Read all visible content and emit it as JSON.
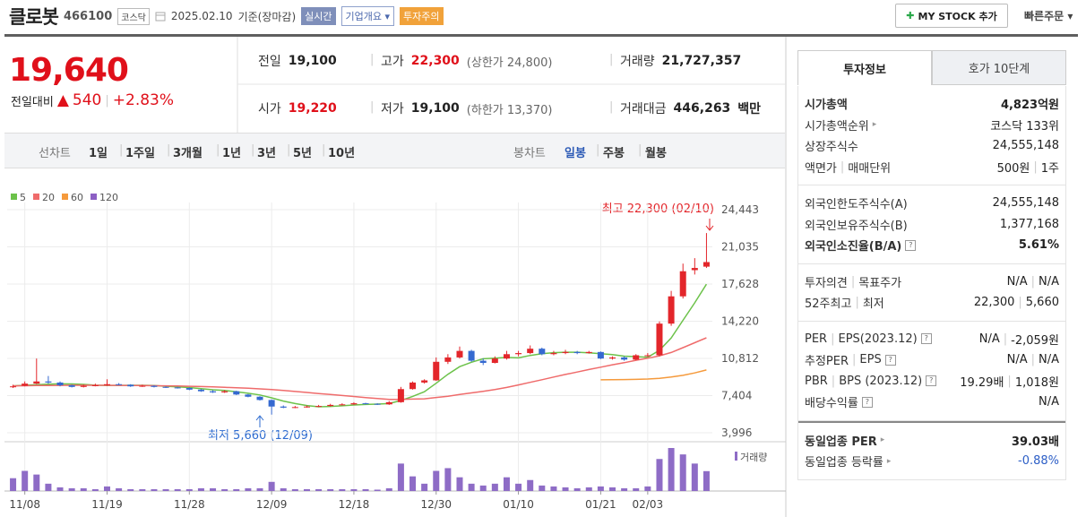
{
  "header": {
    "name": "클로봇",
    "code": "466100",
    "market": "코스닥",
    "date": "2025.02.10",
    "basis": "기준(장마감)",
    "badges": [
      "실시간",
      "기업개요",
      "투자주의"
    ],
    "my_stock": "MY STOCK 추가",
    "quick_order": "빠른주문"
  },
  "quote": {
    "price": "19,640",
    "change_label": "전일대비",
    "change": "540",
    "change_pct": "+2.83%",
    "rows": [
      [
        {
          "label": "전일",
          "value": "19,100"
        },
        {
          "label": "고가",
          "value": "22,300",
          "note": "(상한가 24,800)",
          "tone": "up"
        },
        {
          "label": "거래량",
          "value": "21,727,357"
        }
      ],
      [
        {
          "label": "시가",
          "value": "19,220",
          "tone": "up"
        },
        {
          "label": "저가",
          "value": "19,100",
          "note": "(하한가 13,370)"
        },
        {
          "label": "거래대금",
          "value": "446,263",
          "unit": "백만"
        }
      ]
    ]
  },
  "chart_tabs": {
    "line": "선차트",
    "periods": [
      "1일",
      "1주일",
      "3개월",
      "1년",
      "3년",
      "5년",
      "10년"
    ],
    "candle": "봉차트",
    "candle_periods": [
      "일봉",
      "주봉",
      "월봉"
    ]
  },
  "chart_data": {
    "type": "candlestick",
    "categories": [
      null,
      "11/08",
      null,
      null,
      null,
      null,
      null,
      null,
      "11/19",
      null,
      null,
      null,
      null,
      null,
      null,
      "11/28",
      null,
      null,
      null,
      null,
      null,
      null,
      "12/09",
      null,
      null,
      null,
      null,
      null,
      null,
      "12/18",
      null,
      null,
      null,
      null,
      null,
      null,
      "12/30",
      null,
      null,
      null,
      null,
      null,
      null,
      "01/10",
      null,
      null,
      null,
      null,
      null,
      null,
      "01/21",
      null,
      null,
      null,
      "02/03",
      null,
      null,
      null,
      null,
      null
    ],
    "open": [
      8200,
      8300,
      8500,
      8700,
      8600,
      8350,
      8200,
      8300,
      8350,
      8450,
      8400,
      8250,
      8300,
      8200,
      8150,
      8100,
      7950,
      7800,
      7700,
      7800,
      7500,
      7300,
      7000,
      6400,
      6300,
      6350,
      6400,
      6450,
      6550,
      6600,
      6700,
      6650,
      6600,
      6800,
      8000,
      8600,
      8800,
      10500,
      10900,
      11500,
      10600,
      10400,
      10800,
      11200,
      11300,
      11700,
      11200,
      11300,
      11400,
      11300,
      11400,
      10800,
      10900,
      10700,
      11100,
      11100,
      14000,
      16500,
      18900,
      19220
    ],
    "high": [
      8400,
      8700,
      10800,
      9200,
      8700,
      8400,
      8400,
      8500,
      8900,
      8550,
      8450,
      8400,
      8350,
      8250,
      8200,
      8150,
      8000,
      7900,
      7900,
      7850,
      7550,
      7350,
      7050,
      6500,
      6450,
      6500,
      6550,
      6650,
      6700,
      6800,
      6750,
      6700,
      6900,
      8200,
      8700,
      8900,
      10900,
      11200,
      11900,
      11600,
      10800,
      11000,
      11500,
      11500,
      12000,
      11800,
      11500,
      11600,
      11500,
      11500,
      11450,
      11000,
      11000,
      11200,
      11300,
      14200,
      17000,
      19500,
      20000,
      22300
    ],
    "low": [
      8100,
      8250,
      8450,
      8500,
      8250,
      8150,
      8150,
      8250,
      8300,
      8350,
      8200,
      8200,
      8150,
      8100,
      8050,
      7900,
      7750,
      7650,
      7650,
      7450,
      7250,
      6950,
      5660,
      6250,
      6250,
      6300,
      6350,
      6400,
      6500,
      6550,
      6600,
      6550,
      6550,
      6750,
      7950,
      8500,
      8750,
      10300,
      10800,
      10500,
      10200,
      10350,
      10700,
      11000,
      11200,
      11100,
      11100,
      11200,
      11200,
      11250,
      10750,
      10700,
      10600,
      10650,
      10950,
      11000,
      13800,
      16300,
      18500,
      19100
    ],
    "close": [
      8250,
      8500,
      8700,
      8600,
      8350,
      8200,
      8300,
      8350,
      8450,
      8400,
      8250,
      8300,
      8200,
      8150,
      8100,
      7950,
      7800,
      7700,
      7800,
      7500,
      7300,
      7000,
      6400,
      6300,
      6350,
      6400,
      6450,
      6550,
      6600,
      6700,
      6650,
      6600,
      6800,
      8000,
      8600,
      8800,
      10500,
      10900,
      11500,
      10600,
      10400,
      10800,
      11200,
      11300,
      11700,
      11200,
      11300,
      11400,
      11300,
      11400,
      10800,
      10900,
      10700,
      11100,
      11100,
      14000,
      16500,
      18800,
      19100,
      19640
    ],
    "up_color": "#e3262b",
    "down_color": "#3569d0",
    "series": [
      {
        "name": "5",
        "color": "#6cc24a",
        "values": [
          8300,
          8350,
          8400,
          8450,
          8480,
          8470,
          8430,
          8360,
          8330,
          8340,
          8350,
          8350,
          8320,
          8260,
          8200,
          8140,
          8040,
          7940,
          7870,
          7750,
          7620,
          7460,
          7200,
          6900,
          6670,
          6490,
          6380,
          6410,
          6470,
          6540,
          6590,
          6620,
          6670,
          6950,
          7330,
          7760,
          8540,
          9360,
          10060,
          10460,
          10780,
          10840,
          10900,
          10860,
          11080,
          11240,
          11340,
          11380,
          11380,
          11320,
          11240,
          11160,
          11020,
          10980,
          10920,
          11560,
          12680,
          14300,
          15900,
          17610
        ]
      },
      {
        "name": "20",
        "color": "#ef6b6b",
        "values": [
          8300,
          8310,
          8320,
          8330,
          8340,
          8350,
          8350,
          8350,
          8350,
          8340,
          8330,
          8320,
          8310,
          8300,
          8280,
          8260,
          8230,
          8200,
          8160,
          8120,
          8080,
          8020,
          7950,
          7870,
          7780,
          7690,
          7590,
          7500,
          7410,
          7320,
          7220,
          7130,
          7060,
          7050,
          7080,
          7110,
          7230,
          7350,
          7500,
          7650,
          7800,
          7950,
          8150,
          8380,
          8620,
          8860,
          9100,
          9340,
          9560,
          9790,
          10010,
          10230,
          10420,
          10640,
          10830,
          11050,
          11350,
          11800,
          12250,
          12700
        ]
      },
      {
        "name": "60",
        "color": "#f59a3c",
        "values": [
          null,
          null,
          null,
          null,
          null,
          null,
          null,
          null,
          null,
          null,
          null,
          null,
          null,
          null,
          null,
          null,
          null,
          null,
          null,
          null,
          null,
          null,
          null,
          null,
          null,
          null,
          null,
          null,
          null,
          null,
          null,
          null,
          null,
          null,
          null,
          null,
          null,
          null,
          null,
          null,
          null,
          null,
          null,
          null,
          null,
          null,
          null,
          null,
          null,
          null,
          8850,
          8860,
          8870,
          8890,
          8920,
          8990,
          9100,
          9260,
          9480,
          9750
        ]
      },
      {
        "name": "120",
        "color": "#8c5fc4",
        "values": [
          null,
          null,
          null,
          null,
          null,
          null,
          null,
          null,
          null,
          null,
          null,
          null,
          null,
          null,
          null,
          null,
          null,
          null,
          null,
          null,
          null,
          null,
          null,
          null,
          null,
          null,
          null,
          null,
          null,
          null,
          null,
          null,
          null,
          null,
          null,
          null,
          null,
          null,
          null,
          null,
          null,
          null,
          null,
          null,
          null,
          null,
          null,
          null,
          null,
          null,
          null,
          null,
          null,
          null,
          null,
          null,
          null,
          null,
          null,
          null
        ]
      }
    ],
    "volume": {
      "name": "거래량",
      "color": "#8e6cc6",
      "values": [
        14000000,
        22000000,
        18000000,
        8000000,
        4000000,
        3000000,
        3000000,
        2000000,
        5000000,
        3000000,
        2000000,
        2000000,
        2000000,
        2000000,
        2000000,
        2000000,
        3000000,
        3000000,
        2000000,
        2000000,
        3000000,
        3000000,
        10000000,
        3000000,
        2000000,
        2000000,
        2000000,
        2000000,
        2000000,
        2000000,
        2000000,
        1500000,
        3000000,
        30000000,
        16000000,
        8000000,
        22000000,
        25000000,
        15000000,
        8000000,
        6000000,
        8000000,
        15000000,
        8000000,
        12000000,
        6000000,
        5000000,
        4000000,
        3000000,
        4000000,
        5000000,
        4000000,
        3000000,
        3000000,
        5000000,
        35000000,
        47000000,
        40000000,
        30000000,
        21727357
      ]
    },
    "ylim": [
      3996,
      24443
    ],
    "yticks": [
      {
        "value": 3996,
        "label": "3,996"
      },
      {
        "value": 7404,
        "label": "7,404"
      },
      {
        "value": 10812,
        "label": "10,812"
      },
      {
        "value": 14220,
        "label": "14,220"
      },
      {
        "value": 17628,
        "label": "17,628"
      },
      {
        "value": 21035,
        "label": "21,035"
      },
      {
        "value": 24443,
        "label": "24,443"
      }
    ],
    "grid": true,
    "annotations": {
      "max": "최고 22,300 (02/10)",
      "min": "최저 5,660 (12/09)"
    }
  },
  "sidebar": {
    "tabs": [
      "투자정보",
      "호가 10단계"
    ],
    "groups": [
      [
        {
          "label": "시가총액",
          "value": "4,823억원",
          "strong": true
        },
        {
          "label": "시가총액순위",
          "link": true,
          "value": "코스닥 133위"
        },
        {
          "label": "상장주식수",
          "value": "24,555,148"
        },
        {
          "label": "액면가",
          "label2": "매매단위",
          "value": "500원",
          "value2": "1주"
        }
      ],
      [
        {
          "label": "외국인한도주식수(A)",
          "value": "24,555,148"
        },
        {
          "label": "외국인보유주식수(B)",
          "value": "1,377,168"
        },
        {
          "label": "외국인소진율(B/A)",
          "help": true,
          "value": "5.61%",
          "strong": true
        }
      ],
      [
        {
          "label": "투자의견",
          "label2": "목표주가",
          "value": "N/A",
          "value2": "N/A"
        },
        {
          "label": "52주최고",
          "label2": "최저",
          "value": "22,300",
          "value2": "5,660"
        }
      ],
      [
        {
          "label": "PER",
          "label2": "EPS(2023.12)",
          "help": true,
          "value": "N/A",
          "value2": "-2,059원"
        },
        {
          "label": "추정PER",
          "label2": "EPS",
          "help": true,
          "value": "N/A",
          "value2": "N/A"
        },
        {
          "label": "PBR",
          "label2": "BPS (2023.12)",
          "help": true,
          "value": "19.29배",
          "value2": "1,018원"
        },
        {
          "label": "배당수익률",
          "help": true,
          "value": "N/A"
        }
      ],
      [
        {
          "label": "동일업종 PER",
          "link": true,
          "value": "39.03배",
          "strong": true
        },
        {
          "label": "동일업종 등락률",
          "link": true,
          "value": "-0.88%",
          "tone": "down"
        }
      ]
    ]
  }
}
